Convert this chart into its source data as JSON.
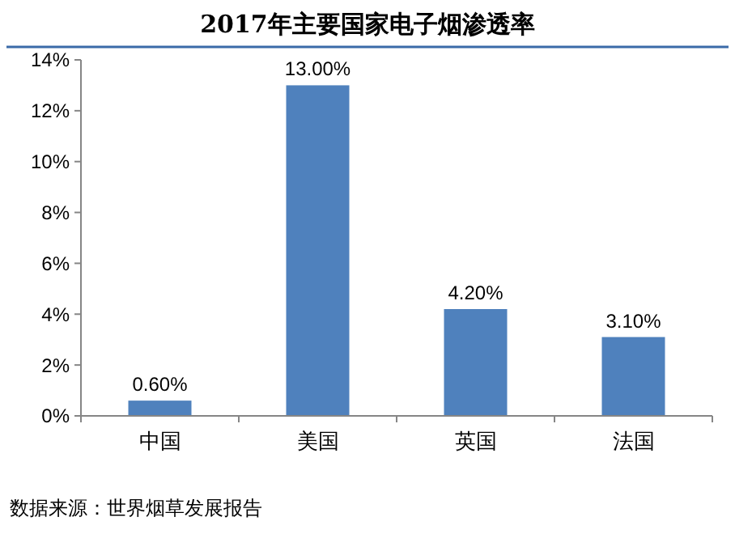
{
  "chart_data": {
    "type": "bar",
    "title": "2017年主要国家电子烟渗透率",
    "categories": [
      "中国",
      "美国",
      "英国",
      "法国"
    ],
    "values": [
      0.6,
      13,
      4.2,
      3.1
    ],
    "value_labels": [
      "0.60%",
      "13.00%",
      "4.20%",
      "3.10%"
    ],
    "color": "#4f81bd",
    "ylim": [
      0,
      14
    ],
    "yticks": [
      {
        "value": 0,
        "label": "0%"
      },
      {
        "value": 2,
        "label": "2%"
      },
      {
        "value": 4,
        "label": "4%"
      },
      {
        "value": 6,
        "label": "6%"
      },
      {
        "value": 8,
        "label": "8%"
      },
      {
        "value": 10,
        "label": "10%"
      },
      {
        "value": 12,
        "label": "12%"
      },
      {
        "value": 14,
        "label": "14%"
      }
    ],
    "grid": false,
    "annotations": [
      "数据来源：世界烟草发展报告"
    ]
  }
}
